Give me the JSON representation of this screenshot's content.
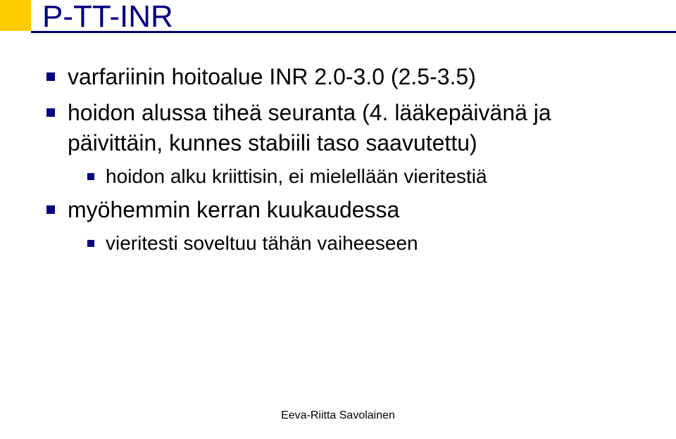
{
  "colors": {
    "accent_square": "#ffcc00",
    "title_color": "#000080",
    "bullet_color": "#000080",
    "text_color": "#000000",
    "background": "#ffffff",
    "underline": "#000080"
  },
  "title": "P-TT-INR",
  "bullets": [
    {
      "level": 1,
      "text": "varfariinin hoitoalue INR 2.0-3.0 (2.5-3.5)"
    },
    {
      "level": 1,
      "text": "hoidon alussa tiheä seuranta (4. lääkepäivänä ja päivittäin, kunnes stabiili taso saavutettu)"
    },
    {
      "level": 2,
      "text": "hoidon alku kriittisin, ei mielellään vieritestiä"
    },
    {
      "level": 1,
      "text": "myöhemmin kerran kuukaudessa"
    },
    {
      "level": 2,
      "text": "vieritesti soveltuu tähän vaiheeseen"
    }
  ],
  "footer": "Eeva-Riitta Savolainen"
}
